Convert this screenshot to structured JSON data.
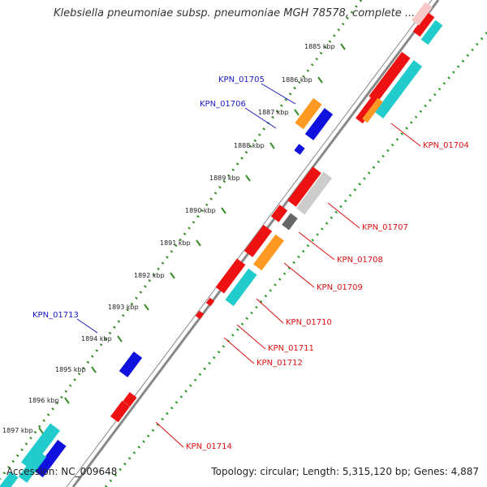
{
  "title": "Klebsiella pneumoniae subsp. pneumoniae MGH 78578, complete ...",
  "footer": {
    "accession": "Accession: NC_009648",
    "summary": "Topology: circular; Length: 5,315,120 bp; Genes: 4,887"
  },
  "colors": {
    "backbone": "#888888",
    "forward_dots": "#3a8a2a",
    "reverse_dots": "#2a9a2a",
    "label_forward": "#1a1acc",
    "label_reverse": "#dd1111",
    "gene_red": "#ee1111",
    "gene_cyan": "#22cccc",
    "gene_orange": "#ff9922",
    "gene_blue": "#1111dd",
    "gene_gray": "#cccccc",
    "gene_darkgray": "#666666"
  },
  "ticks": [
    "1885 kbp",
    "1886 kbp",
    "1887 kbp",
    "1888 kbp",
    "1889 kbp",
    "1890 kbp",
    "1891 kbp",
    "1892 kbp",
    "1893 kbp",
    "1894 kbp",
    "1895 kbp",
    "1896 kbp",
    "1897 kbp"
  ],
  "gene_labels": [
    {
      "text": "KPN_01705",
      "strand": "forward"
    },
    {
      "text": "KPN_01706",
      "strand": "forward"
    },
    {
      "text": "KPN_01704",
      "strand": "reverse"
    },
    {
      "text": "KPN_01707",
      "strand": "reverse"
    },
    {
      "text": "KPN_01708",
      "strand": "reverse"
    },
    {
      "text": "KPN_01709",
      "strand": "reverse"
    },
    {
      "text": "KPN_01710",
      "strand": "reverse"
    },
    {
      "text": "KPN_01711",
      "strand": "reverse"
    },
    {
      "text": "KPN_01712",
      "strand": "reverse"
    },
    {
      "text": "KPN_01713",
      "strand": "forward"
    },
    {
      "text": "KPN_01714",
      "strand": "reverse"
    }
  ]
}
